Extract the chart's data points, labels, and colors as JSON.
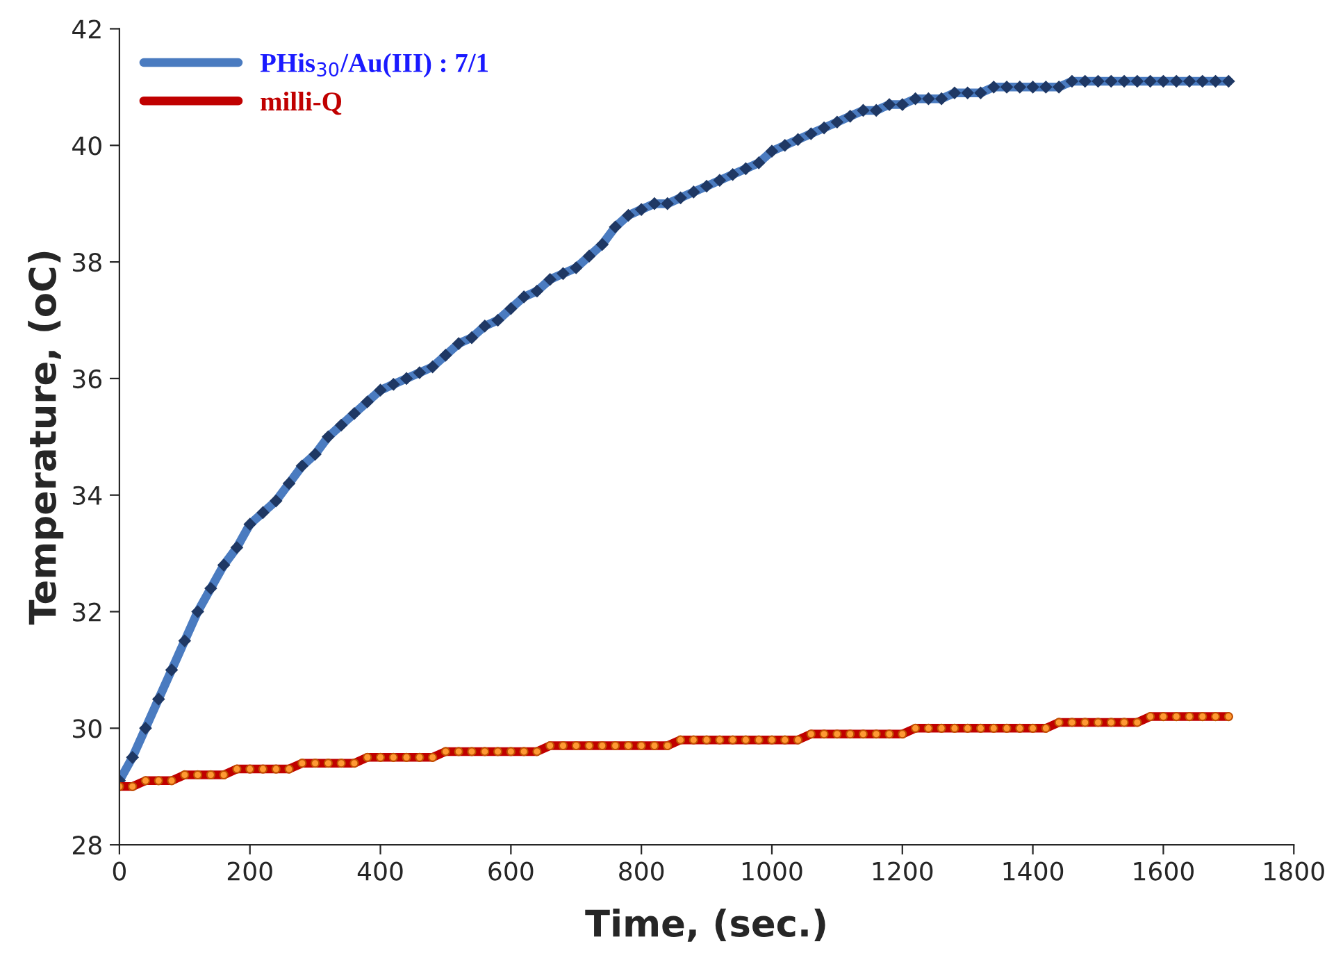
{
  "chart_data": {
    "type": "line",
    "xlabel": "Time, (sec.)",
    "ylabel": "Temperature, (oC)",
    "x": [
      0,
      20,
      40,
      60,
      80,
      100,
      120,
      140,
      160,
      180,
      200,
      220,
      240,
      260,
      280,
      300,
      320,
      340,
      360,
      380,
      400,
      420,
      440,
      460,
      480,
      500,
      520,
      540,
      560,
      580,
      600,
      620,
      640,
      660,
      680,
      700,
      720,
      740,
      760,
      780,
      800,
      820,
      840,
      860,
      880,
      900,
      920,
      940,
      960,
      980,
      1000,
      1020,
      1040,
      1060,
      1080,
      1100,
      1120,
      1140,
      1160,
      1180,
      1200,
      1220,
      1240,
      1260,
      1280,
      1300,
      1320,
      1340,
      1360,
      1380,
      1400,
      1420,
      1440,
      1460,
      1480,
      1500,
      1520,
      1540,
      1560,
      1580,
      1600,
      1620,
      1640,
      1660,
      1680,
      1700
    ],
    "series": [
      {
        "name": "PHis$_{30}$/Au(III) : 7/1",
        "color": "#4a7bc0",
        "marker": "diamond",
        "values": [
          29.1,
          29.5,
          30.0,
          30.5,
          31.0,
          31.5,
          32.0,
          32.4,
          32.8,
          33.1,
          33.5,
          33.7,
          33.9,
          34.2,
          34.5,
          34.7,
          35.0,
          35.2,
          35.4,
          35.6,
          35.8,
          35.9,
          36.0,
          36.1,
          36.2,
          36.4,
          36.6,
          36.7,
          36.9,
          37.0,
          37.2,
          37.4,
          37.5,
          37.7,
          37.8,
          37.9,
          38.1,
          38.3,
          38.6,
          38.8,
          38.9,
          39.0,
          39.0,
          39.1,
          39.2,
          39.3,
          39.4,
          39.5,
          39.6,
          39.7,
          39.9,
          40.0,
          40.1,
          40.2,
          40.3,
          40.4,
          40.5,
          40.6,
          40.6,
          40.7,
          40.7,
          40.8,
          40.8,
          40.8,
          40.9,
          40.9,
          40.9,
          41.0,
          41.0,
          41.0,
          41.0,
          41.0,
          41.0,
          41.1,
          41.1,
          41.1,
          41.1,
          41.1,
          41.1,
          41.1,
          41.1,
          41.1,
          41.1,
          41.1,
          41.1,
          41.1
        ]
      },
      {
        "name": "milli-Q",
        "color": "#c00000",
        "marker": "circle",
        "values": [
          29.0,
          29.0,
          29.1,
          29.1,
          29.1,
          29.2,
          29.2,
          29.2,
          29.2,
          29.3,
          29.3,
          29.3,
          29.3,
          29.3,
          29.4,
          29.4,
          29.4,
          29.4,
          29.4,
          29.5,
          29.5,
          29.5,
          29.5,
          29.5,
          29.5,
          29.6,
          29.6,
          29.6,
          29.6,
          29.6,
          29.6,
          29.6,
          29.6,
          29.7,
          29.7,
          29.7,
          29.7,
          29.7,
          29.7,
          29.7,
          29.7,
          29.7,
          29.7,
          29.8,
          29.8,
          29.8,
          29.8,
          29.8,
          29.8,
          29.8,
          29.8,
          29.8,
          29.8,
          29.9,
          29.9,
          29.9,
          29.9,
          29.9,
          29.9,
          29.9,
          29.9,
          30.0,
          30.0,
          30.0,
          30.0,
          30.0,
          30.0,
          30.0,
          30.0,
          30.0,
          30.0,
          30.0,
          30.1,
          30.1,
          30.1,
          30.1,
          30.1,
          30.1,
          30.1,
          30.2,
          30.2,
          30.2,
          30.2,
          30.2,
          30.2,
          30.2
        ]
      }
    ],
    "xlim": [
      0,
      1800
    ],
    "xticks": [
      0,
      200,
      400,
      600,
      800,
      1000,
      1200,
      1400,
      1600,
      1800
    ],
    "ylim": [
      28,
      42
    ],
    "yticks": [
      28,
      30,
      32,
      34,
      36,
      38,
      40,
      42
    ],
    "grid": false,
    "legend": "top left",
    "line_style": "solid"
  }
}
